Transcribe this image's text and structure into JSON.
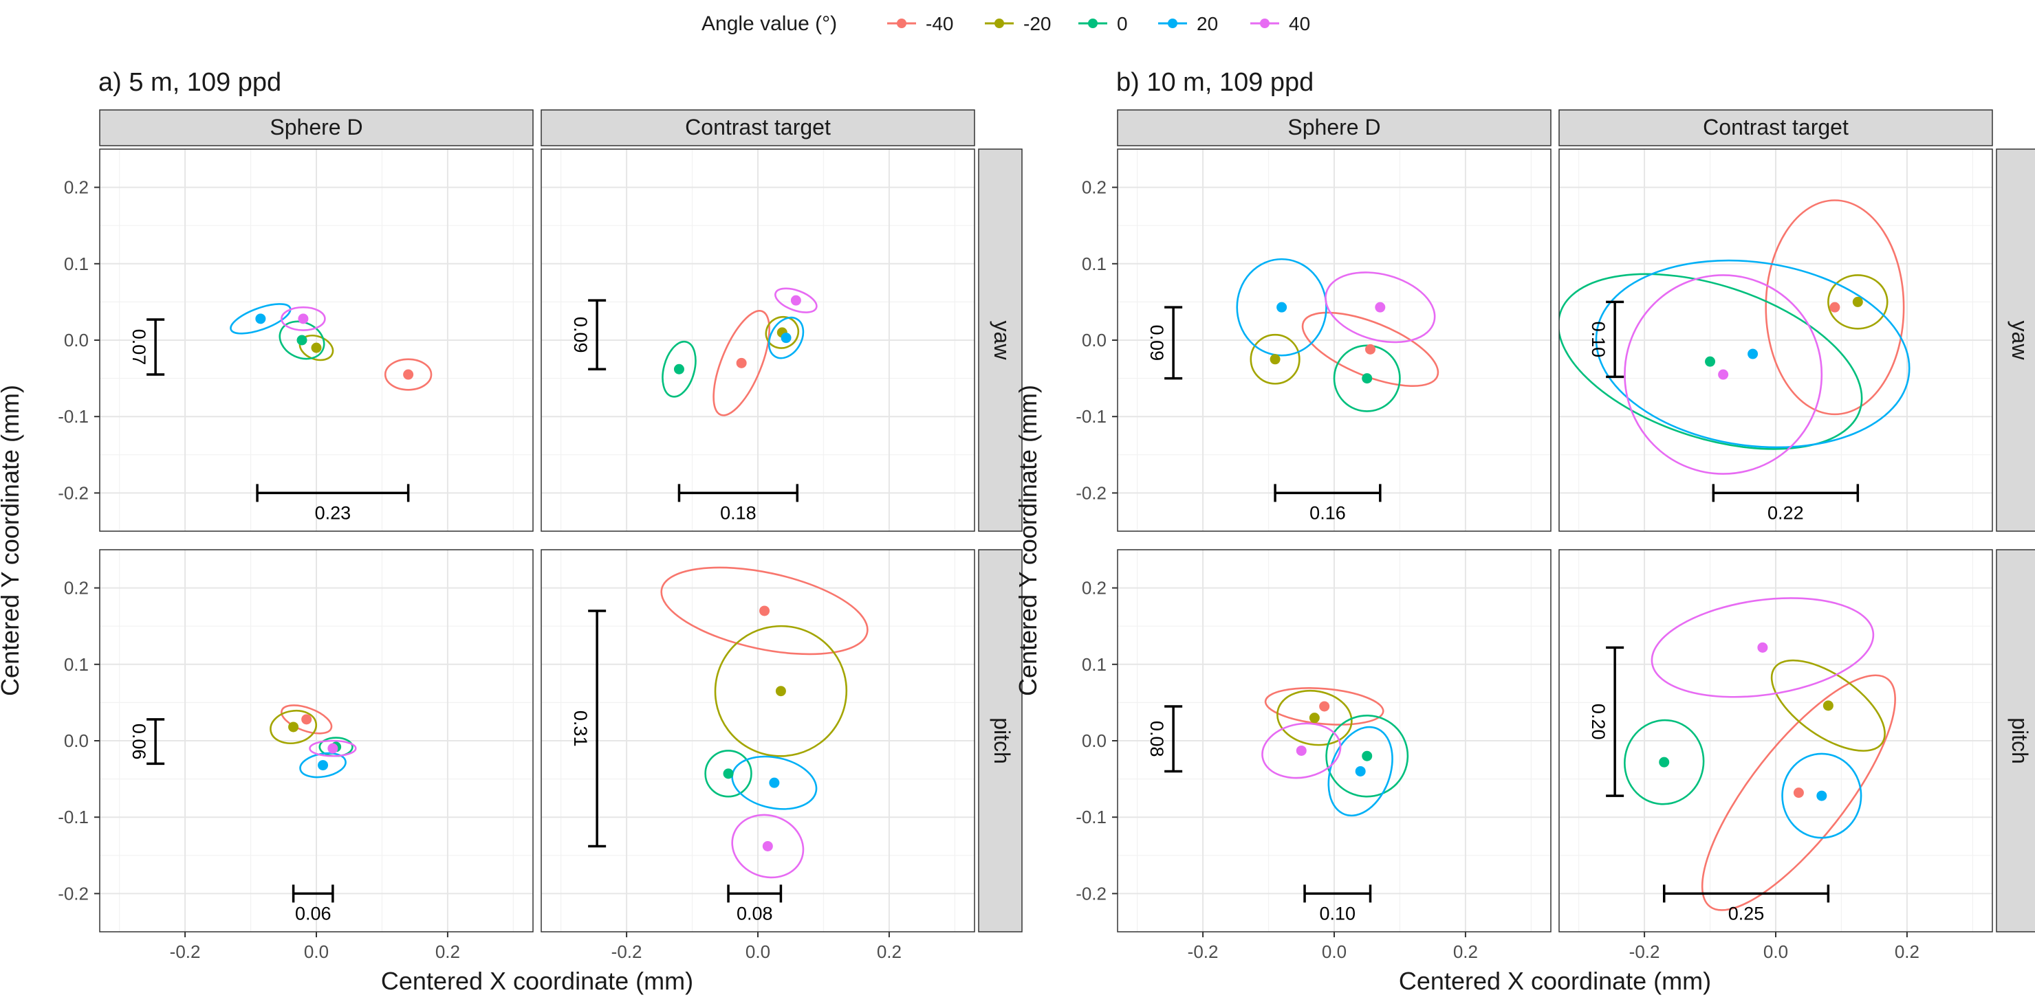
{
  "legend": {
    "title": "Angle value (°)",
    "entries": [
      {
        "label": "-40",
        "color": "#F8766D"
      },
      {
        "label": "-20",
        "color": "#A3A500"
      },
      {
        "label": "0",
        "color": "#00BF7D"
      },
      {
        "label": "20",
        "color": "#00B0F6"
      },
      {
        "label": "40",
        "color": "#E76BF3"
      }
    ]
  },
  "chart_data": [
    {
      "type": "scatter",
      "title": "a)   5 m, 109 ppd",
      "xlabel": "Centered X coordinate (mm)",
      "ylabel": "Centered Y coordinate (mm)",
      "xlim": [
        -0.33,
        0.33
      ],
      "ylim": [
        -0.25,
        0.25
      ],
      "xticks": [
        -0.2,
        0.0,
        0.2
      ],
      "yticks": [
        -0.2,
        -0.1,
        0.0,
        0.1,
        0.2
      ],
      "tick_labels_x": [
        "-0.2",
        "0.0",
        "0.2"
      ],
      "tick_labels_y": [
        "-0.2",
        "-0.1",
        "0.0",
        "0.1",
        "0.2"
      ],
      "columns": [
        "Sphere D",
        "Contrast target"
      ],
      "rows": [
        "yaw",
        "pitch"
      ],
      "panels": [
        {
          "col": "Sphere D",
          "row": "yaw",
          "points": [
            {
              "angle": "-40",
              "x": 0.14,
              "y": -0.045,
              "rx": 0.035,
              "ry": 0.02,
              "rot": 0
            },
            {
              "angle": "-20",
              "x": 0.0,
              "y": -0.01,
              "rx": 0.026,
              "ry": 0.015,
              "rot": -20
            },
            {
              "angle": "0",
              "x": -0.022,
              "y": 0.0,
              "rx": 0.035,
              "ry": 0.023,
              "rot": -25
            },
            {
              "angle": "20",
              "x": -0.085,
              "y": 0.028,
              "rx": 0.048,
              "ry": 0.014,
              "rot": 20
            },
            {
              "angle": "40",
              "x": -0.02,
              "y": 0.028,
              "rx": 0.033,
              "ry": 0.015,
              "rot": 0
            }
          ],
          "hbar": {
            "x1": -0.09,
            "x2": 0.14,
            "y": -0.2,
            "label": "0.23"
          },
          "vbar": {
            "x": -0.245,
            "y1": -0.045,
            "y2": 0.027,
            "label": "0.07"
          }
        },
        {
          "col": "Contrast target",
          "row": "yaw",
          "points": [
            {
              "angle": "-40",
              "x": -0.025,
              "y": -0.03,
              "rx": 0.085,
              "ry": 0.026,
              "rot": 68
            },
            {
              "angle": "-20",
              "x": 0.037,
              "y": 0.01,
              "rx": 0.025,
              "ry": 0.02,
              "rot": 30
            },
            {
              "angle": "0",
              "x": -0.12,
              "y": -0.038,
              "rx": 0.043,
              "ry": 0.02,
              "rot": 75
            },
            {
              "angle": "20",
              "x": 0.043,
              "y": 0.003,
              "rx": 0.033,
              "ry": 0.02,
              "rot": 60
            },
            {
              "angle": "40",
              "x": 0.058,
              "y": 0.052,
              "rx": 0.033,
              "ry": 0.013,
              "rot": -20
            }
          ],
          "hbar": {
            "x1": -0.12,
            "x2": 0.06,
            "y": -0.2,
            "label": "0.18"
          },
          "vbar": {
            "x": -0.245,
            "y1": -0.038,
            "y2": 0.052,
            "label": "0.09"
          }
        },
        {
          "col": "Sphere D",
          "row": "pitch",
          "points": [
            {
              "angle": "-40",
              "x": -0.015,
              "y": 0.028,
              "rx": 0.04,
              "ry": 0.015,
              "rot": -20
            },
            {
              "angle": "-20",
              "x": -0.035,
              "y": 0.018,
              "rx": 0.035,
              "ry": 0.021,
              "rot": 10
            },
            {
              "angle": "0",
              "x": 0.03,
              "y": -0.008,
              "rx": 0.025,
              "ry": 0.012,
              "rot": 0
            },
            {
              "angle": "20",
              "x": 0.01,
              "y": -0.032,
              "rx": 0.035,
              "ry": 0.015,
              "rot": 10
            },
            {
              "angle": "40",
              "x": 0.025,
              "y": -0.01,
              "rx": 0.035,
              "ry": 0.01,
              "rot": 0
            }
          ],
          "hbar": {
            "x1": -0.035,
            "x2": 0.025,
            "y": -0.2,
            "label": "0.06"
          },
          "vbar": {
            "x": -0.245,
            "y1": -0.03,
            "y2": 0.028,
            "label": "0.06"
          }
        },
        {
          "col": "Contrast target",
          "row": "pitch",
          "points": [
            {
              "angle": "-40",
              "x": 0.01,
              "y": 0.17,
              "rx": 0.16,
              "ry": 0.05,
              "rot": -12
            },
            {
              "angle": "-20",
              "x": 0.035,
              "y": 0.065,
              "rx": 0.1,
              "ry": 0.085,
              "rot": 15
            },
            {
              "angle": "0",
              "x": -0.045,
              "y": -0.043,
              "rx": 0.035,
              "ry": 0.03,
              "rot": 0
            },
            {
              "angle": "20",
              "x": 0.025,
              "y": -0.055,
              "rx": 0.065,
              "ry": 0.033,
              "rot": -12
            },
            {
              "angle": "40",
              "x": 0.015,
              "y": -0.138,
              "rx": 0.055,
              "ry": 0.04,
              "rot": -20
            }
          ],
          "hbar": {
            "x1": -0.045,
            "x2": 0.035,
            "y": -0.2,
            "label": "0.08"
          },
          "vbar": {
            "x": -0.245,
            "y1": -0.138,
            "y2": 0.17,
            "label": "0.31"
          }
        }
      ]
    },
    {
      "type": "scatter",
      "title": "b)   10 m, 109 ppd",
      "xlabel": "Centered X coordinate (mm)",
      "ylabel": "Centered Y coordinate (mm)",
      "xlim": [
        -0.33,
        0.33
      ],
      "ylim": [
        -0.25,
        0.25
      ],
      "xticks": [
        -0.2,
        0.0,
        0.2
      ],
      "yticks": [
        -0.2,
        -0.1,
        0.0,
        0.1,
        0.2
      ],
      "tick_labels_x": [
        "-0.2",
        "0.0",
        "0.2"
      ],
      "tick_labels_y": [
        "-0.2",
        "-0.1",
        "0.0",
        "0.1",
        "0.2"
      ],
      "columns": [
        "Sphere D",
        "Contrast target"
      ],
      "rows": [
        "yaw",
        "pitch"
      ],
      "panels": [
        {
          "col": "Sphere D",
          "row": "yaw",
          "points": [
            {
              "angle": "-40",
              "x": 0.055,
              "y": -0.012,
              "rx": 0.11,
              "ry": 0.035,
              "rot": -22
            },
            {
              "angle": "-20",
              "x": -0.09,
              "y": -0.025,
              "rx": 0.037,
              "ry": 0.032,
              "rot": 0
            },
            {
              "angle": "0",
              "x": 0.05,
              "y": -0.05,
              "rx": 0.05,
              "ry": 0.043,
              "rot": 0
            },
            {
              "angle": "20",
              "x": -0.08,
              "y": 0.043,
              "rx": 0.068,
              "ry": 0.063,
              "rot": 0
            },
            {
              "angle": "40",
              "x": 0.07,
              "y": 0.043,
              "rx": 0.085,
              "ry": 0.043,
              "rot": -15
            }
          ],
          "hbar": {
            "x1": -0.09,
            "x2": 0.07,
            "y": -0.2,
            "label": "0.16"
          },
          "vbar": {
            "x": -0.245,
            "y1": -0.05,
            "y2": 0.043,
            "label": "0.09"
          }
        },
        {
          "col": "Contrast target",
          "row": "yaw",
          "points": [
            {
              "angle": "-40",
              "x": 0.09,
              "y": 0.043,
              "rx": 0.105,
              "ry": 0.14,
              "rot": 0
            },
            {
              "angle": "-20",
              "x": 0.125,
              "y": 0.05,
              "rx": 0.045,
              "ry": 0.035,
              "rot": 0
            },
            {
              "angle": "0",
              "x": -0.1,
              "y": -0.028,
              "rx": 0.24,
              "ry": 0.1,
              "rot": -18
            },
            {
              "angle": "20",
              "x": -0.035,
              "y": -0.018,
              "rx": 0.24,
              "ry": 0.12,
              "rot": -8
            },
            {
              "angle": "40",
              "x": -0.08,
              "y": -0.045,
              "rx": 0.15,
              "ry": 0.13,
              "rot": 0
            }
          ],
          "hbar": {
            "x1": -0.095,
            "x2": 0.125,
            "y": -0.2,
            "label": "0.22"
          },
          "vbar": {
            "x": -0.245,
            "y1": -0.048,
            "y2": 0.05,
            "label": "0.10"
          }
        },
        {
          "col": "Sphere D",
          "row": "pitch",
          "points": [
            {
              "angle": "-40",
              "x": -0.015,
              "y": 0.045,
              "rx": 0.09,
              "ry": 0.023,
              "rot": -5
            },
            {
              "angle": "-20",
              "x": -0.03,
              "y": 0.03,
              "rx": 0.057,
              "ry": 0.035,
              "rot": -10
            },
            {
              "angle": "0",
              "x": 0.05,
              "y": -0.02,
              "rx": 0.062,
              "ry": 0.053,
              "rot": 20
            },
            {
              "angle": "20",
              "x": 0.04,
              "y": -0.04,
              "rx": 0.045,
              "ry": 0.06,
              "rot": -20
            },
            {
              "angle": "40",
              "x": -0.05,
              "y": -0.013,
              "rx": 0.06,
              "ry": 0.035,
              "rot": 10
            }
          ],
          "hbar": {
            "x1": -0.045,
            "x2": 0.055,
            "y": -0.2,
            "label": "0.10"
          },
          "vbar": {
            "x": -0.245,
            "y1": -0.04,
            "y2": 0.045,
            "label": "0.08"
          }
        },
        {
          "col": "Contrast target",
          "row": "pitch",
          "points": [
            {
              "angle": "-40",
              "x": 0.035,
              "y": -0.068,
              "rx": 0.22,
              "ry": 0.062,
              "rot": 52
            },
            {
              "angle": "-20",
              "x": 0.08,
              "y": 0.046,
              "rx": 0.1,
              "ry": 0.04,
              "rot": -35
            },
            {
              "angle": "0",
              "x": -0.17,
              "y": -0.028,
              "rx": 0.06,
              "ry": 0.055,
              "rot": -10
            },
            {
              "angle": "20",
              "x": 0.07,
              "y": -0.072,
              "rx": 0.06,
              "ry": 0.055,
              "rot": 0
            },
            {
              "angle": "40",
              "x": -0.02,
              "y": 0.122,
              "rx": 0.17,
              "ry": 0.062,
              "rot": 8
            }
          ],
          "hbar": {
            "x1": -0.17,
            "x2": 0.08,
            "y": -0.2,
            "label": "0.25"
          },
          "vbar": {
            "x": -0.245,
            "y1": -0.072,
            "y2": 0.122,
            "label": "0.20"
          }
        }
      ]
    }
  ]
}
